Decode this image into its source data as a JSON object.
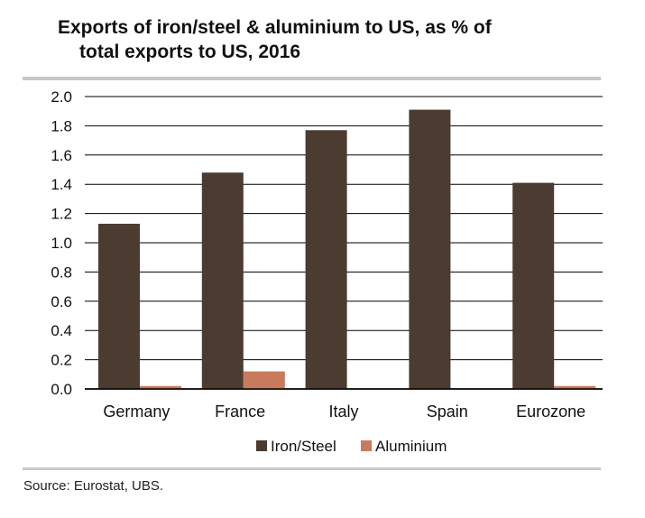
{
  "title_line1": "Exports of iron/steel & aluminium to US, as % of",
  "title_line2": "total exports to US, 2016",
  "source": "Source:  Eurostat, UBS.",
  "colors": {
    "iron_steel": "#4b3b30",
    "aluminium": "#c97a5c",
    "grid": "#000000"
  },
  "chart_data": {
    "type": "bar",
    "categories": [
      "Germany",
      "France",
      "Italy",
      "Spain",
      "Eurozone"
    ],
    "series": [
      {
        "name": "Iron/Steel",
        "values": [
          1.13,
          1.48,
          1.77,
          1.91,
          1.41
        ]
      },
      {
        "name": "Aluminium",
        "values": [
          0.02,
          0.12,
          0.0,
          0.0,
          0.02
        ]
      }
    ],
    "ylim": [
      0,
      2.0
    ],
    "yticks": [
      "0.0",
      "0.2",
      "0.4",
      "0.6",
      "0.8",
      "1.0",
      "1.2",
      "1.4",
      "1.6",
      "1.8",
      "2.0"
    ],
    "grid": true,
    "legend_position": "bottom"
  }
}
